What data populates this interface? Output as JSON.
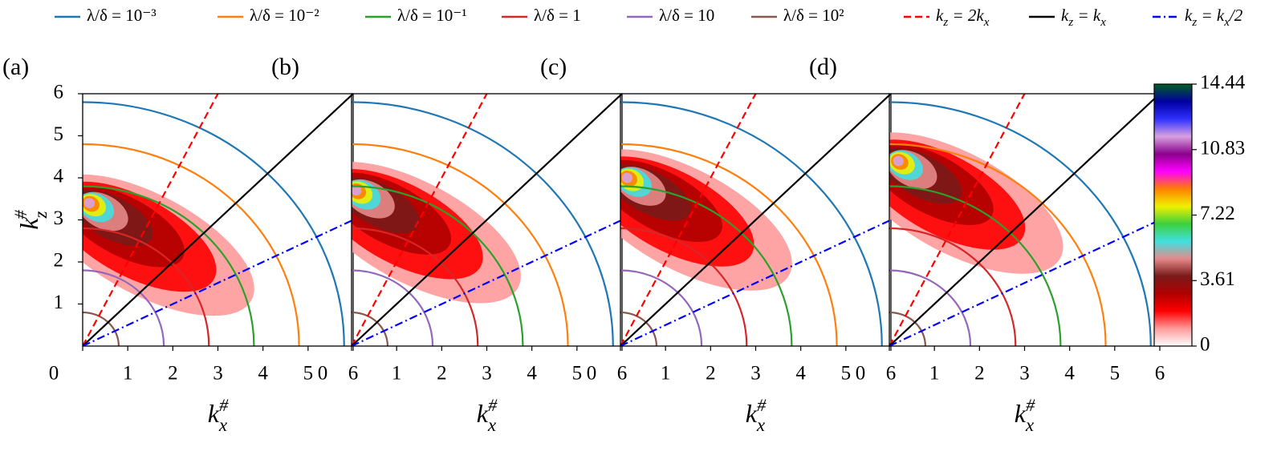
{
  "legend": [
    {
      "name": [
        "λ/δ = 10⁻³"
      ],
      "color": "#1f77b4",
      "radius": 5.8
    },
    {
      "name": [
        "λ/δ = 10⁻²"
      ],
      "color": "#ff7f0e",
      "radius": 4.8
    },
    {
      "name": [
        "λ/δ = 10⁻¹"
      ],
      "color": "#2ca02c",
      "radius": 3.8
    },
    {
      "name": [
        "λ/δ = 1"
      ],
      "color": "#d62728",
      "radius": 2.8
    },
    {
      "name": [
        "λ/δ = 10"
      ],
      "color": "#9467bd",
      "radius": 1.8
    },
    {
      "name": [
        "λ/δ = 10²"
      ],
      "color": "#8c564b",
      "radius": 0.8
    },
    {
      "name": [
        "k",
        "z",
        " = 2k",
        "x"
      ],
      "color": "#ff0000",
      "slope": 2,
      "dash": "dashed"
    },
    {
      "name": [
        "k",
        "z",
        " = k",
        "x"
      ],
      "color": "#000000",
      "slope": 1,
      "dash": "solid"
    },
    {
      "name": [
        "k",
        "z",
        " = k",
        "x",
        "/2"
      ],
      "color": "#0000ff",
      "slope": 0.5,
      "dash": "dashdot"
    }
  ],
  "chart_data": [
    {
      "type": "contour",
      "panel_label": "(a)",
      "xlabel": [
        "k",
        "x",
        "#"
      ],
      "ylabel": [
        "k",
        "z",
        "#"
      ],
      "xlim": [
        0,
        6
      ],
      "ylim": [
        0,
        6
      ],
      "xticks": [
        0,
        1,
        2,
        3,
        4,
        5,
        6
      ],
      "yticks": [
        1,
        2,
        3,
        4,
        5,
        6
      ],
      "peak": {
        "x": 0.15,
        "y": 3.4
      }
    },
    {
      "type": "contour",
      "panel_label": "(b)",
      "xlabel": [
        "k",
        "x",
        "#"
      ],
      "xlim": [
        0,
        6
      ],
      "ylim": [
        0,
        6
      ],
      "xticks": [
        0,
        1,
        2,
        3,
        4,
        5,
        6
      ],
      "peak": {
        "x": 0.1,
        "y": 3.7
      }
    },
    {
      "type": "contour",
      "panel_label": "(c)",
      "xlabel": [
        "k",
        "x",
        "#"
      ],
      "xlim": [
        0,
        6
      ],
      "ylim": [
        0,
        6
      ],
      "xticks": [
        0,
        1,
        2,
        3,
        4,
        5,
        6
      ],
      "peak": {
        "x": 0.15,
        "y": 4.0
      }
    },
    {
      "type": "contour",
      "panel_label": "(d)",
      "xlabel": [
        "k",
        "x",
        "#"
      ],
      "xlim": [
        0,
        6
      ],
      "ylim": [
        0,
        6
      ],
      "xticks": [
        0,
        1,
        2,
        3,
        4,
        5,
        6
      ],
      "peak": {
        "x": 0.2,
        "y": 4.4
      }
    }
  ],
  "colorbar": {
    "lim": [
      0,
      14.44
    ],
    "ticks": [
      0,
      3.61,
      7.22,
      10.83,
      14.44
    ],
    "colormap": [
      "#ffffff",
      "#ff9a9a",
      "#ff0000",
      "#b00000",
      "#7a1a1a",
      "#e58a8a",
      "#40e0e0",
      "#3cd03c",
      "#f0f000",
      "#ff8000",
      "#ff00ff",
      "#8b008b",
      "#d8a0e0",
      "#3030ff",
      "#0000a0",
      "#006020"
    ]
  }
}
